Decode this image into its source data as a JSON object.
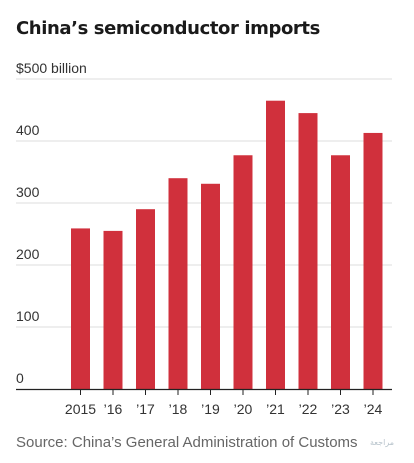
{
  "title": "China’s semiconductor imports",
  "source": "Source: China’s General Administration of Customs",
  "watermark": "مراجعة",
  "colors": {
    "bar": "#d0303c",
    "grid": "#dddddd",
    "axis": "#222222"
  },
  "chart_data": {
    "type": "bar",
    "categories": [
      "2015",
      "’16",
      "’17",
      "’18",
      "’19",
      "’20",
      "’21",
      "’22",
      "’23",
      "’24"
    ],
    "values": [
      259,
      255,
      290,
      340,
      331,
      377,
      465,
      445,
      377,
      413
    ],
    "y_ticks": [
      {
        "value": 0,
        "label": "0"
      },
      {
        "value": 100,
        "label": "100"
      },
      {
        "value": 200,
        "label": "200"
      },
      {
        "value": 300,
        "label": "300"
      },
      {
        "value": 400,
        "label": "400"
      },
      {
        "value": 500,
        "label": "$500 billion"
      }
    ],
    "ylim": [
      0,
      500
    ],
    "grid": true,
    "legend": "none"
  }
}
